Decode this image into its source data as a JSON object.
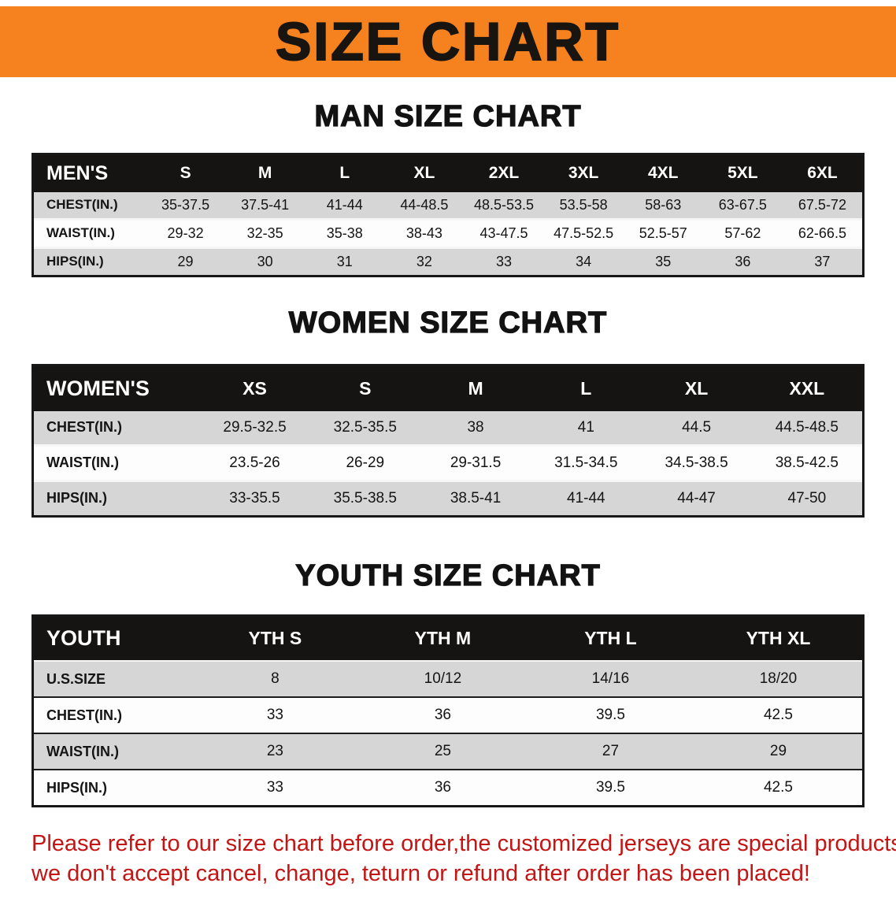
{
  "banner": {
    "title": "SIZE CHART",
    "bg_color": "#f5821e"
  },
  "sections": [
    {
      "heading": "MAN SIZE CHART",
      "table": {
        "name_label": "MEN'S",
        "columns": [
          "S",
          "M",
          "L",
          "XL",
          "2XL",
          "3XL",
          "4XL",
          "5XL",
          "6XL"
        ],
        "rows": [
          {
            "label": "CHEST(IN.)",
            "values": [
              "35-37.5",
              "37.5-41",
              "41-44",
              "44-48.5",
              "48.5-53.5",
              "53.5-58",
              "58-63",
              "63-67.5",
              "67.5-72"
            ]
          },
          {
            "label": "WAIST(IN.)",
            "values": [
              "29-32",
              "32-35",
              "35-38",
              "38-43",
              "43-47.5",
              "47.5-52.5",
              "52.5-57",
              "57-62",
              "62-66.5"
            ]
          },
          {
            "label": "HIPS(IN.)",
            "values": [
              "29",
              "30",
              "31",
              "32",
              "33",
              "34",
              "35",
              "36",
              "37"
            ]
          }
        ]
      }
    },
    {
      "heading": "WOMEN SIZE CHART",
      "table": {
        "name_label": "WOMEN'S",
        "columns": [
          "XS",
          "S",
          "M",
          "L",
          "XL",
          "XXL"
        ],
        "rows": [
          {
            "label": "CHEST(IN.)",
            "values": [
              "29.5-32.5",
              "32.5-35.5",
              "38",
              "41",
              "44.5",
              "44.5-48.5"
            ]
          },
          {
            "label": "WAIST(IN.)",
            "values": [
              "23.5-26",
              "26-29",
              "29-31.5",
              "31.5-34.5",
              "34.5-38.5",
              "38.5-42.5"
            ]
          },
          {
            "label": "HIPS(IN.)",
            "values": [
              "33-35.5",
              "35.5-38.5",
              "38.5-41",
              "41-44",
              "44-47",
              "47-50"
            ]
          }
        ]
      }
    },
    {
      "heading": "YOUTH SIZE CHART",
      "table": {
        "name_label": "YOUTH",
        "columns": [
          "YTH S",
          "YTH M",
          "YTH L",
          "YTH XL"
        ],
        "rows": [
          {
            "label": "U.S.SIZE",
            "values": [
              "8",
              "10/12",
              "14/16",
              "18/20"
            ]
          },
          {
            "label": "CHEST(IN.)",
            "values": [
              "33",
              "36",
              "39.5",
              "42.5"
            ]
          },
          {
            "label": "WAIST(IN.)",
            "values": [
              "23",
              "25",
              "27",
              "29"
            ]
          },
          {
            "label": "HIPS(IN.)",
            "values": [
              "33",
              "36",
              "39.5",
              "42.5"
            ]
          }
        ]
      }
    }
  ],
  "disclaimer": {
    "color": "#c41414",
    "lines": [
      "Please refer to our size chart before order,the customized jerseys are special products,",
      "we don't accept cancel, change, teturn or refund after order has been placed!"
    ]
  }
}
